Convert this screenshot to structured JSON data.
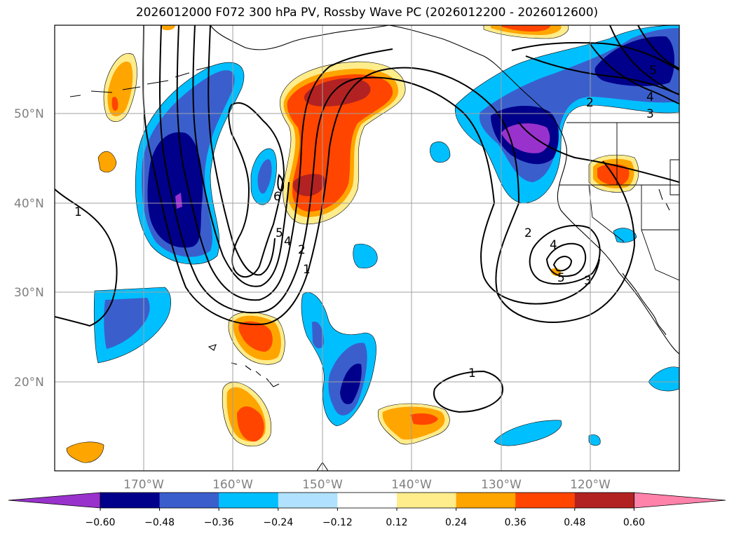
{
  "title": "2026012000 F072 300 hPa PV, Rossby Wave PC (2026012200 - 2026012600)",
  "lat_labels": [
    "50°N",
    "40°N",
    "30°N",
    "20°N"
  ],
  "lon_labels": [
    "170°W",
    "160°W",
    "150°W",
    "140°W",
    "130°W",
    "120°W"
  ],
  "contour_labels": [
    "1",
    "6",
    "5",
    "4",
    "2",
    "1",
    "2",
    "4",
    "5",
    "3",
    "2",
    "3",
    "4",
    "5",
    "1"
  ],
  "colorbar": {
    "ticks": [
      "−0.60",
      "−0.48",
      "−0.36",
      "−0.24",
      "−0.12",
      "0.12",
      "0.24",
      "0.36",
      "0.48",
      "0.60"
    ],
    "colors": [
      "#9932cc",
      "#00008b",
      "#3a5fcd",
      "#00bfff",
      "#b0e2ff",
      "#ffffff",
      "#ffec8b",
      "#ffa500",
      "#ff4500",
      "#b22222",
      "#ff82ab"
    ]
  },
  "colors": {
    "neg_extreme": "#9932cc",
    "neg_strong": "#00008b",
    "neg_mid": "#3a5fcd",
    "neg_weak": "#00bfff",
    "neg_faint": "#b0e2ff",
    "pos_faint": "#ffec8b",
    "pos_weak": "#ffa500",
    "pos_mid": "#ff4500",
    "pos_strong": "#b22222",
    "pos_extreme": "#ff82ab"
  }
}
